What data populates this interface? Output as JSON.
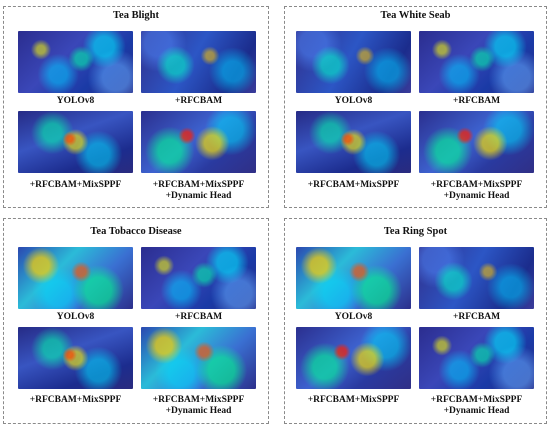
{
  "panels": [
    {
      "title": "Tea Blight",
      "labels": [
        "YOLOv8",
        "+RFCBAM",
        "+RFCBAM+MixSPPF",
        "+RFCBAM+MixSPPF",
        "+Dynamic Head"
      ]
    },
    {
      "title": "Tea White Seab",
      "labels": [
        "YOLOv8",
        "+RFCBAM",
        "+RFCBAM+MixSPPF",
        "+RFCBAM+MixSPPF",
        "+Dynamic Head"
      ]
    },
    {
      "title": "Tea Tobacco Disease",
      "labels": [
        "YOLOv8",
        "+RFCBAM",
        "+RFCBAM+MixSPPF",
        "+RFCBAM+MixSPPF",
        "+Dynamic Head"
      ]
    },
    {
      "title": "Tea Ring Spot",
      "labels": [
        "YOLOv8",
        "+RFCBAM",
        "+RFCBAM+MixSPPF",
        "+RFCBAM+MixSPPF",
        "+Dynamic Head"
      ]
    }
  ]
}
